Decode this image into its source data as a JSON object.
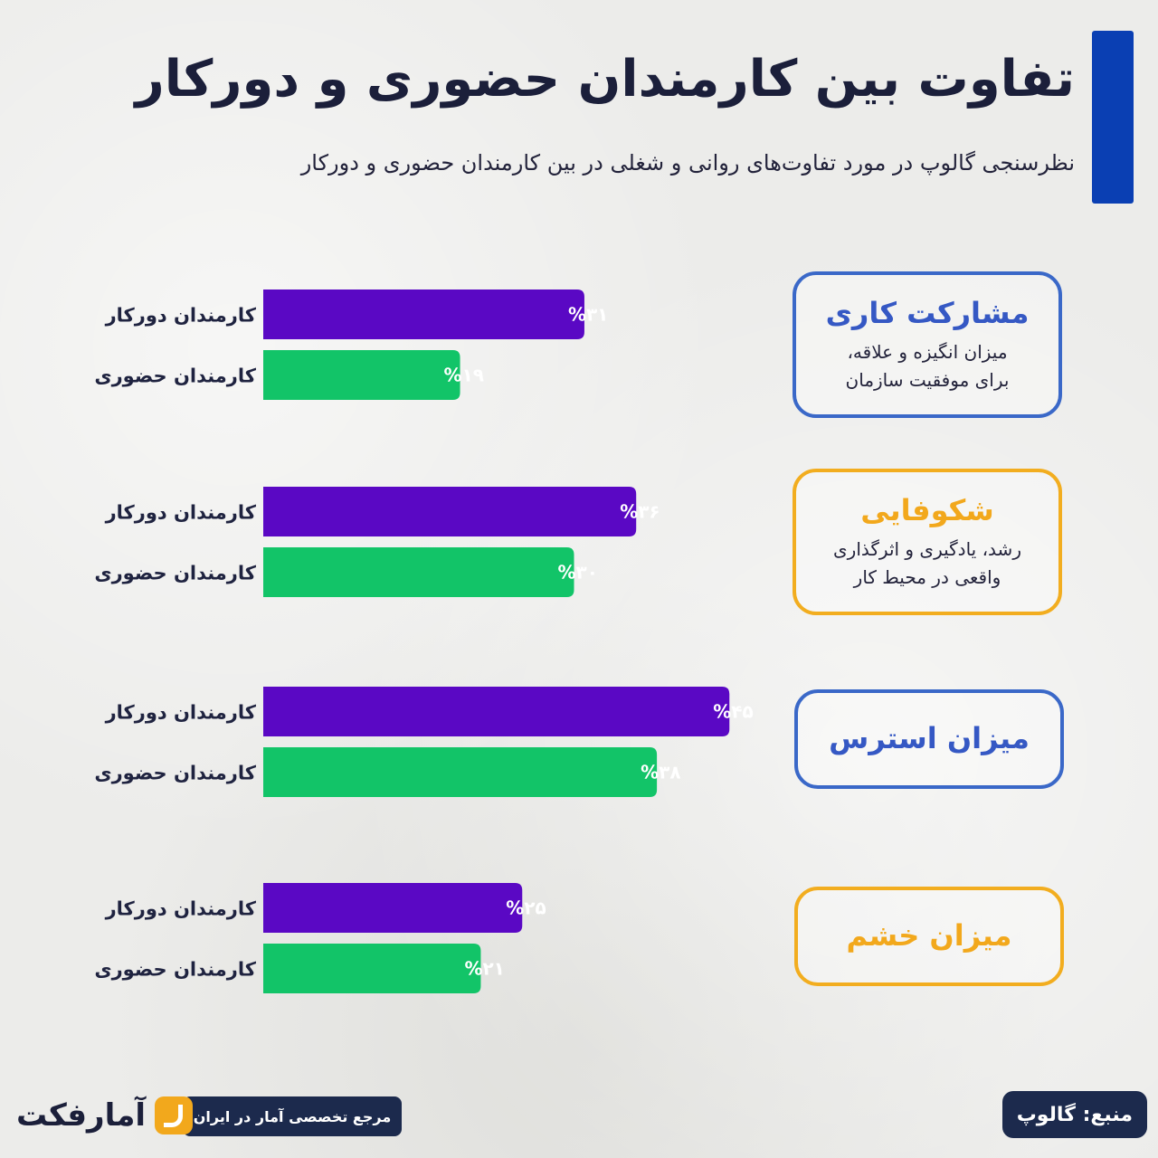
{
  "title": "تفاوت بین کارمندان حضوری و دورکار",
  "subtitle": "نظرسنجی گالوپ در مورد تفاوت‌های روانی و شغلی در بین کارمندان حضوری و دورکار",
  "colors": {
    "remote": "#5a08c4",
    "onsite": "#12c468",
    "accent_bar": "#0a3fb3",
    "box_blue": "#3a68c8",
    "box_orange": "#f2ad1f"
  },
  "chart_data": {
    "type": "bar",
    "orientation": "horizontal",
    "series_labels": {
      "remote": "کارمندان دورکار",
      "onsite": "کارمندان حضوری"
    },
    "groups": [
      {
        "title": "مشارکت کاری",
        "desc1": "میزان انگیزه و علاقه،",
        "desc2": "برای موفقیت سازمان",
        "box_color": "blue",
        "remote": 31,
        "remote_label": "%۳۱",
        "onsite": 19,
        "onsite_label": "%۱۹"
      },
      {
        "title": "شکوفایی",
        "desc1": "رشد، یادگیری و اثرگذاری",
        "desc2": "واقعی در محیط کار",
        "box_color": "orange",
        "remote": 36,
        "remote_label": "%۳۶",
        "onsite": 30,
        "onsite_label": "%۳۰"
      },
      {
        "title": "میزان استرس",
        "box_color": "blue",
        "remote": 45,
        "remote_label": "%۴۵",
        "onsite": 38,
        "onsite_label": "%۳۸"
      },
      {
        "title": "میزان خشم",
        "box_color": "orange",
        "remote": 25,
        "remote_label": "%۲۵",
        "onsite": 21,
        "onsite_label": "%۲۱"
      }
    ]
  },
  "footer": {
    "source": "منبع: گالوپ",
    "tagline": "مرجع تخصصی آمار در ایران",
    "logo_text": "آمارفکت"
  }
}
